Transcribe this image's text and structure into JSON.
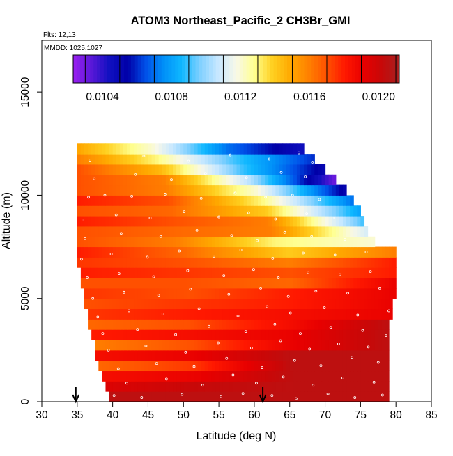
{
  "chart_data": {
    "type": "heatmap",
    "title": "ATOM3 Northeast_Pacific_2 CH3Br_GMI",
    "annotations": [
      "Flts: 12,13",
      "MMDD: 1025,1027"
    ],
    "xlabel": "Latitude (deg N)",
    "ylabel": "Altitude (m)",
    "xlim": [
      30,
      85
    ],
    "ylim": [
      0,
      17500
    ],
    "x_ticks": [
      "30",
      "35",
      "40",
      "45",
      "50",
      "55",
      "60",
      "65",
      "70",
      "75",
      "80",
      "85"
    ],
    "y_ticks": [
      "0",
      "5000",
      "10000",
      "15000"
    ],
    "colorbar": {
      "range": [
        0.01023,
        0.01212
      ],
      "tick_values": [
        0.0104,
        0.0108,
        0.0112,
        0.0116,
        0.012
      ],
      "tick_labels": [
        "0.0104",
        "0.0108",
        "0.0112",
        "0.0116",
        "0.0120"
      ],
      "colors": [
        "#9a20f0",
        "#5a18d8",
        "#1010c0",
        "#0000a8",
        "#0050e8",
        "#0090f8",
        "#10b8ff",
        "#80d0ff",
        "#c8e8ff",
        "#f8f8e8",
        "#ffff90",
        "#ffd020",
        "#ffa800",
        "#ff8000",
        "#ff5000",
        "#ff1800",
        "#e80000",
        "#c80808",
        "#a82020"
      ]
    },
    "layers": [
      {
        "alt": 250,
        "lat_min": 39.5,
        "lat_max": 79,
        "values": [
          0.01205,
          0.01205,
          0.01205,
          0.01205
        ]
      },
      {
        "alt": 750,
        "lat_min": 39,
        "lat_max": 79,
        "values": [
          0.01195,
          0.01202,
          0.01205,
          0.01205
        ]
      },
      {
        "alt": 1250,
        "lat_min": 38.5,
        "lat_max": 79,
        "values": [
          0.01185,
          0.0119,
          0.01205,
          0.01205
        ]
      },
      {
        "alt": 1750,
        "lat_min": 38,
        "lat_max": 79,
        "values": [
          0.01165,
          0.01175,
          0.01205,
          0.01205
        ]
      },
      {
        "alt": 2250,
        "lat_min": 37.5,
        "lat_max": 79,
        "values": [
          0.01185,
          0.0119,
          0.01205,
          0.01205
        ]
      },
      {
        "alt": 2750,
        "lat_min": 37.5,
        "lat_max": 79,
        "values": [
          0.0116,
          0.0117,
          0.0119,
          0.01205
        ]
      },
      {
        "alt": 3250,
        "lat_min": 37,
        "lat_max": 79,
        "values": [
          0.0118,
          0.01185,
          0.0119,
          0.01205
        ]
      },
      {
        "alt": 3750,
        "lat_min": 36.5,
        "lat_max": 79,
        "values": [
          0.01165,
          0.0117,
          0.01185,
          0.01205
        ]
      },
      {
        "alt": 4250,
        "lat_min": 36.5,
        "lat_max": 79.5,
        "values": [
          0.01175,
          0.0118,
          0.01185,
          0.0119
        ]
      },
      {
        "alt": 4750,
        "lat_min": 36,
        "lat_max": 79.5,
        "values": [
          0.0117,
          0.01175,
          0.0118,
          0.0119
        ]
      },
      {
        "alt": 5250,
        "lat_min": 36,
        "lat_max": 80,
        "values": [
          0.01175,
          0.0117,
          0.0118,
          0.0119
        ]
      },
      {
        "alt": 5750,
        "lat_min": 35.5,
        "lat_max": 80,
        "values": [
          0.0117,
          0.0117,
          0.01165,
          0.0119
        ]
      },
      {
        "alt": 6250,
        "lat_min": 35.5,
        "lat_max": 80,
        "values": [
          0.0118,
          0.01175,
          0.0117,
          0.0118
        ]
      },
      {
        "alt": 6750,
        "lat_min": 35,
        "lat_max": 80,
        "values": [
          0.01175,
          0.0117,
          0.0116,
          0.0118
        ]
      },
      {
        "alt": 7250,
        "lat_min": 35,
        "lat_max": 80,
        "values": [
          0.0118,
          0.01165,
          0.0114,
          0.0116
        ]
      },
      {
        "alt": 7750,
        "lat_min": 35,
        "lat_max": 77,
        "values": [
          0.0117,
          0.0116,
          0.0113,
          0.0112
        ]
      },
      {
        "alt": 8250,
        "lat_min": 35,
        "lat_max": 76,
        "values": [
          0.0117,
          0.01165,
          0.0116,
          0.0111
        ]
      },
      {
        "alt": 8750,
        "lat_min": 35,
        "lat_max": 75.5,
        "values": [
          0.0118,
          0.0117,
          0.0116,
          0.0109
        ]
      },
      {
        "alt": 9250,
        "lat_min": 35,
        "lat_max": 75,
        "values": [
          0.0117,
          0.01165,
          0.0114,
          0.0108
        ]
      },
      {
        "alt": 9750,
        "lat_min": 35,
        "lat_max": 74,
        "values": [
          0.0118,
          0.0117,
          0.0113,
          0.0107
        ]
      },
      {
        "alt": 10250,
        "lat_min": 35,
        "lat_max": 73,
        "values": [
          0.0117,
          0.0116,
          0.0112,
          0.0105
        ]
      },
      {
        "alt": 10750,
        "lat_min": 35,
        "lat_max": 71.5,
        "values": [
          0.0117,
          0.0116,
          0.01105,
          0.0103
        ]
      },
      {
        "alt": 11250,
        "lat_min": 35,
        "lat_max": 70,
        "values": [
          0.0117,
          0.01145,
          0.0109,
          0.0105
        ]
      },
      {
        "alt": 11750,
        "lat_min": 35,
        "lat_max": 68.5,
        "values": [
          0.0116,
          0.0113,
          0.0109,
          0.0106
        ]
      },
      {
        "alt": 12250,
        "lat_min": 35,
        "lat_max": 67,
        "values": [
          0.0115,
          0.0112,
          0.0107,
          0.01045
        ]
      }
    ],
    "reference_latitudes": [
      34.8,
      61.2
    ],
    "obs_points": [
      [
        40.2,
        300
      ],
      [
        44.1,
        200
      ],
      [
        49.8,
        350
      ],
      [
        55.3,
        250
      ],
      [
        58.4,
        400
      ],
      [
        62.5,
        300
      ],
      [
        65.9,
        150
      ],
      [
        70.4,
        380
      ],
      [
        74.2,
        200
      ],
      [
        78.1,
        320
      ],
      [
        42.0,
        900
      ],
      [
        47.6,
        1100
      ],
      [
        52.7,
        800
      ],
      [
        57.0,
        1300
      ],
      [
        60.3,
        900
      ],
      [
        64.1,
        1200
      ],
      [
        68.3,
        800
      ],
      [
        72.5,
        1150
      ],
      [
        76.9,
        950
      ],
      [
        40.8,
        1600
      ],
      [
        46.2,
        1850
      ],
      [
        51.5,
        1700
      ],
      [
        56.1,
        2100
      ],
      [
        61.1,
        1650
      ],
      [
        65.7,
        2000
      ],
      [
        69.4,
        1750
      ],
      [
        73.8,
        2150
      ],
      [
        77.5,
        1900
      ],
      [
        39.4,
        2500
      ],
      [
        44.7,
        2700
      ],
      [
        50.3,
        2400
      ],
      [
        54.9,
        2850
      ],
      [
        59.6,
        2600
      ],
      [
        63.7,
        2950
      ],
      [
        67.8,
        2550
      ],
      [
        71.9,
        2800
      ],
      [
        76.1,
        2650
      ],
      [
        38.6,
        3300
      ],
      [
        43.5,
        3500
      ],
      [
        48.9,
        3250
      ],
      [
        53.6,
        3650
      ],
      [
        58.8,
        3400
      ],
      [
        62.9,
        3750
      ],
      [
        66.5,
        3300
      ],
      [
        70.8,
        3600
      ],
      [
        75.3,
        3450
      ],
      [
        78.6,
        3200
      ],
      [
        37.9,
        4100
      ],
      [
        42.3,
        4400
      ],
      [
        47.1,
        4250
      ],
      [
        52.2,
        4500
      ],
      [
        57.7,
        4150
      ],
      [
        61.8,
        4600
      ],
      [
        65.1,
        4300
      ],
      [
        69.9,
        4550
      ],
      [
        74.6,
        4200
      ],
      [
        79.0,
        4400
      ],
      [
        37.2,
        5000
      ],
      [
        41.6,
        5300
      ],
      [
        46.5,
        5150
      ],
      [
        51.0,
        5450
      ],
      [
        56.4,
        5200
      ],
      [
        60.9,
        5500
      ],
      [
        64.8,
        5100
      ],
      [
        68.7,
        5350
      ],
      [
        73.2,
        5250
      ],
      [
        77.7,
        5500
      ],
      [
        36.4,
        6000
      ],
      [
        40.9,
        6200
      ],
      [
        45.8,
        6050
      ],
      [
        50.6,
        6350
      ],
      [
        55.7,
        6100
      ],
      [
        59.9,
        6400
      ],
      [
        63.4,
        6000
      ],
      [
        67.6,
        6250
      ],
      [
        72.1,
        6150
      ],
      [
        76.4,
        6300
      ],
      [
        35.6,
        6900
      ],
      [
        39.8,
        7150
      ],
      [
        44.9,
        7000
      ],
      [
        49.4,
        7300
      ],
      [
        54.3,
        7050
      ],
      [
        58.1,
        7350
      ],
      [
        62.6,
        6950
      ],
      [
        66.9,
        7200
      ],
      [
        71.4,
        7100
      ],
      [
        75.8,
        7250
      ],
      [
        36.1,
        7900
      ],
      [
        41.2,
        8150
      ],
      [
        46.8,
        8000
      ],
      [
        51.9,
        8300
      ],
      [
        56.8,
        8050
      ],
      [
        60.4,
        7800
      ],
      [
        64.3,
        8200
      ],
      [
        68.1,
        8000
      ],
      [
        72.8,
        7850
      ],
      [
        35.8,
        8800
      ],
      [
        40.5,
        9050
      ],
      [
        45.3,
        8900
      ],
      [
        50.1,
        9200
      ],
      [
        55.0,
        8950
      ],
      [
        59.2,
        9150
      ],
      [
        63.0,
        8850
      ],
      [
        67.4,
        9100
      ],
      [
        71.1,
        8900
      ],
      [
        36.6,
        9900
      ],
      [
        38.9,
        10000
      ],
      [
        42.7,
        9950
      ],
      [
        47.4,
        10050
      ],
      [
        52.5,
        9850
      ],
      [
        57.3,
        10100
      ],
      [
        61.6,
        9900
      ],
      [
        65.4,
        10000
      ],
      [
        69.2,
        9800
      ],
      [
        37.4,
        10800
      ],
      [
        43.2,
        11000
      ],
      [
        48.3,
        10750
      ],
      [
        53.1,
        11050
      ],
      [
        58.9,
        10850
      ],
      [
        63.8,
        11100
      ],
      [
        67.2,
        10900
      ],
      [
        36.8,
        11700
      ],
      [
        44.4,
        11900
      ],
      [
        50.7,
        11650
      ],
      [
        56.6,
        11950
      ],
      [
        62.1,
        11750
      ],
      [
        66.3,
        12050
      ],
      [
        68.2,
        11600
      ]
    ]
  }
}
